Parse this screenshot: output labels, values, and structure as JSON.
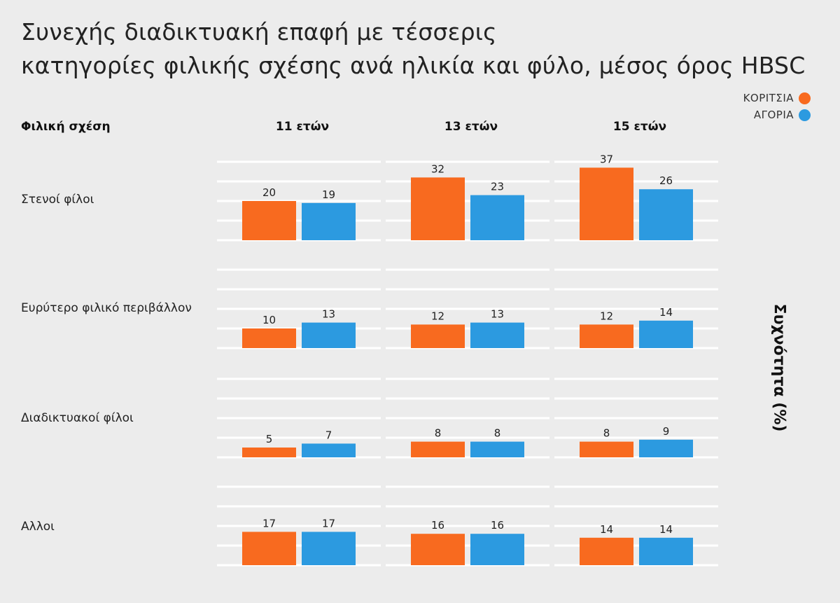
{
  "title": {
    "line1": "Συνεχής διαδικτυακή επαφή με τέσσερις",
    "line2": "κατηγορίες φιλικής σχέσης ανά ηλικία και φύλο, μέσος όρος HBSC"
  },
  "legend": [
    {
      "label": "ΚΟΡΙΤΣΙΑ",
      "color": "#f86a1f"
    },
    {
      "label": "ΑΓΟΡΙΑ",
      "color": "#2c9ae0"
    }
  ],
  "row_header": "Φιλική σχέση",
  "y_axis_label": "Συχνότητα (%)",
  "chart_data": {
    "type": "bar",
    "title": "Συνεχής διαδικτυακή επαφή με τέσσερις κατηγορίες φιλικής σχέσης ανά ηλικία και φύλο, μέσος όρος HBSC",
    "ylabel": "Συχνότητα (%)",
    "columns": [
      "11 ετών",
      "13 ετών",
      "15 ετών"
    ],
    "rows": [
      "Στενοί φίλοι",
      "Ευρύτερο φιλικό περιβάλλον",
      "Διαδικτυακοί φίλοι",
      "Αλλοι"
    ],
    "series": [
      {
        "name": "ΚΟΡΙΤΣΙΑ",
        "values": [
          [
            20,
            32,
            37
          ],
          [
            10,
            12,
            12
          ],
          [
            5,
            8,
            8
          ],
          [
            17,
            16,
            14
          ]
        ]
      },
      {
        "name": "ΑΓΟΡΙΑ",
        "values": [
          [
            19,
            23,
            26
          ],
          [
            13,
            13,
            14
          ],
          [
            7,
            8,
            9
          ],
          [
            17,
            16,
            14
          ]
        ]
      }
    ],
    "ylim": [
      0,
      40
    ],
    "grid": true,
    "legend_position": "top-right"
  }
}
